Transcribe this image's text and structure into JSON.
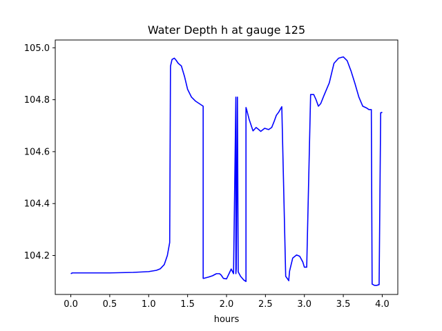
{
  "chart_data": {
    "type": "line",
    "title": "Water Depth h at gauge 125",
    "xlabel": "hours",
    "ylabel": "",
    "xlim": [
      -0.2,
      4.2
    ],
    "ylim": [
      104.05,
      105.03
    ],
    "xticks": [
      0.0,
      0.5,
      1.0,
      1.5,
      2.0,
      2.5,
      3.0,
      3.5,
      4.0
    ],
    "xtick_labels": [
      "0.0",
      "0.5",
      "1.0",
      "1.5",
      "2.0",
      "2.5",
      "3.0",
      "3.5",
      "4.0"
    ],
    "yticks": [
      104.2,
      104.4,
      104.6,
      104.8,
      105.0
    ],
    "ytick_labels": [
      "104.2",
      "104.4",
      "104.6",
      "104.8",
      "105.0"
    ],
    "grid": false,
    "line_color": "#0000ff",
    "series": [
      {
        "x": [
          0.0,
          0.02,
          0.5,
          0.8,
          1.0,
          1.1,
          1.15,
          1.2,
          1.24,
          1.27,
          1.28,
          1.281,
          1.3,
          1.33,
          1.35,
          1.38,
          1.42,
          1.46,
          1.5,
          1.55,
          1.6,
          1.7,
          1.7,
          1.72,
          1.77,
          1.82,
          1.87,
          1.91,
          1.93,
          1.96,
          2.0,
          2.04,
          2.06,
          2.09,
          2.12,
          2.12,
          2.125,
          2.14,
          2.15,
          2.18,
          2.22,
          2.25,
          2.25,
          2.26,
          2.29,
          2.34,
          2.38,
          2.41,
          2.44,
          2.49,
          2.54,
          2.58,
          2.61,
          2.64,
          2.67,
          2.71,
          2.76,
          2.8,
          2.8,
          2.81,
          2.85,
          2.9,
          2.94,
          2.98,
          3.0,
          3.03,
          3.08,
          3.12,
          3.12,
          3.12,
          3.15,
          3.18,
          3.21,
          3.25,
          3.32,
          3.38,
          3.44,
          3.5,
          3.55,
          3.6,
          3.65,
          3.7,
          3.75,
          3.8,
          3.83,
          3.86,
          3.87,
          3.87,
          3.9,
          3.93,
          3.96,
          3.98,
          3.99,
          4.0
        ],
        "y": [
          104.13,
          104.133,
          104.133,
          104.135,
          104.138,
          104.143,
          104.149,
          104.165,
          104.2,
          104.25,
          104.92,
          104.93,
          104.955,
          104.96,
          104.953,
          104.94,
          104.93,
          104.89,
          104.84,
          104.81,
          104.795,
          104.775,
          104.112,
          104.113,
          104.117,
          104.122,
          104.13,
          104.13,
          104.125,
          104.112,
          104.11,
          104.135,
          104.148,
          104.13,
          104.81,
          104.13,
          104.148,
          104.81,
          104.137,
          104.12,
          104.106,
          104.1,
          104.77,
          104.76,
          104.725,
          104.68,
          104.693,
          104.686,
          104.678,
          104.69,
          104.685,
          104.693,
          104.715,
          104.74,
          104.752,
          104.773,
          104.12,
          104.103,
          104.108,
          104.14,
          104.19,
          104.202,
          104.197,
          104.175,
          104.155,
          104.155,
          104.82,
          104.82,
          104.82,
          104.82,
          104.8,
          104.775,
          104.785,
          104.815,
          104.865,
          104.94,
          104.96,
          104.965,
          104.95,
          104.91,
          104.862,
          104.81,
          104.775,
          104.768,
          104.762,
          104.762,
          104.1,
          104.09,
          104.085,
          104.085,
          104.088,
          104.75,
          104.75,
          104.752
        ]
      }
    ]
  }
}
